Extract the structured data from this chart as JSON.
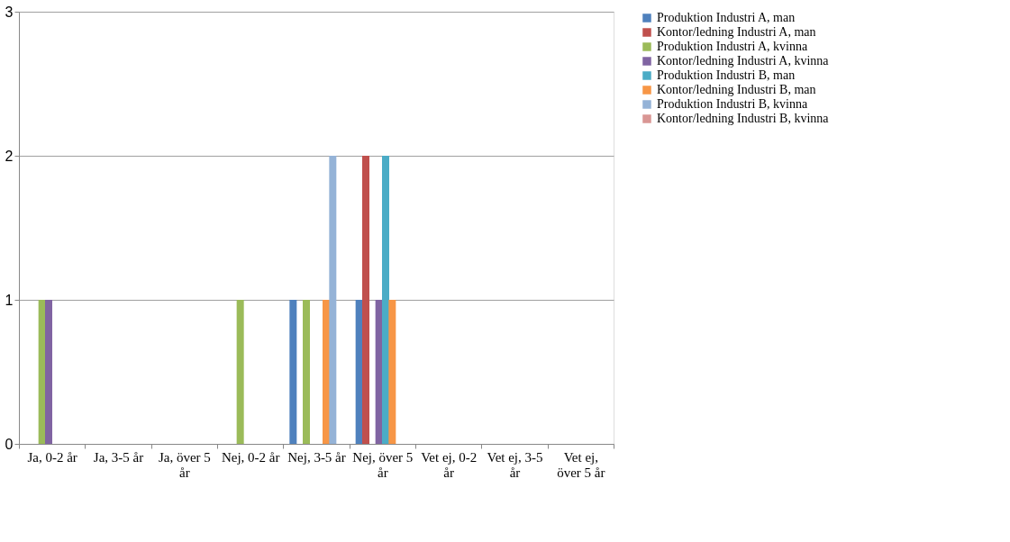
{
  "chart_data": {
    "type": "bar",
    "categories": [
      "Ja, 0-2 år",
      "Ja, 3-5 år",
      "Ja, över 5 år",
      "Nej, 0-2 år",
      "Nej, 3-5 år",
      "Nej, över 5 år",
      "Vet ej, 0-2 år",
      "Vet ej, 3-5 år",
      "Vet ej, över 5 år"
    ],
    "series": [
      {
        "name": "Produktion Industri A, man",
        "color": "#4f81bd",
        "values": [
          0,
          0,
          0,
          0,
          1,
          1,
          0,
          0,
          0
        ]
      },
      {
        "name": "Kontor/ledning Industri A, man",
        "color": "#c0504d",
        "values": [
          0,
          0,
          0,
          0,
          0,
          2,
          0,
          0,
          0
        ]
      },
      {
        "name": "Produktion Industri A, kvinna",
        "color": "#9bbb59",
        "values": [
          1,
          0,
          0,
          1,
          1,
          0,
          0,
          0,
          0
        ]
      },
      {
        "name": "Kontor/ledning Industri A, kvinna",
        "color": "#8064a2",
        "values": [
          1,
          0,
          0,
          0,
          0,
          1,
          0,
          0,
          0
        ]
      },
      {
        "name": "Produktion Industri B, man",
        "color": "#4bacc6",
        "values": [
          0,
          0,
          0,
          0,
          0,
          2,
          0,
          0,
          0
        ]
      },
      {
        "name": "Kontor/ledning Industri B, man",
        "color": "#f79646",
        "values": [
          0,
          0,
          0,
          0,
          1,
          1,
          0,
          0,
          0
        ]
      },
      {
        "name": "Produktion Industri B, kvinna",
        "color": "#95b3d7",
        "values": [
          0,
          0,
          0,
          0,
          2,
          0,
          0,
          0,
          0
        ]
      },
      {
        "name": "Kontor/ledning Industri B, kvinna",
        "color": "#d99694",
        "values": [
          0,
          0,
          0,
          0,
          0,
          0,
          0,
          0,
          0
        ]
      }
    ],
    "ylim": [
      0,
      3
    ],
    "yticks": [
      0,
      1,
      2,
      3
    ],
    "grid": "y",
    "legend": "right"
  }
}
